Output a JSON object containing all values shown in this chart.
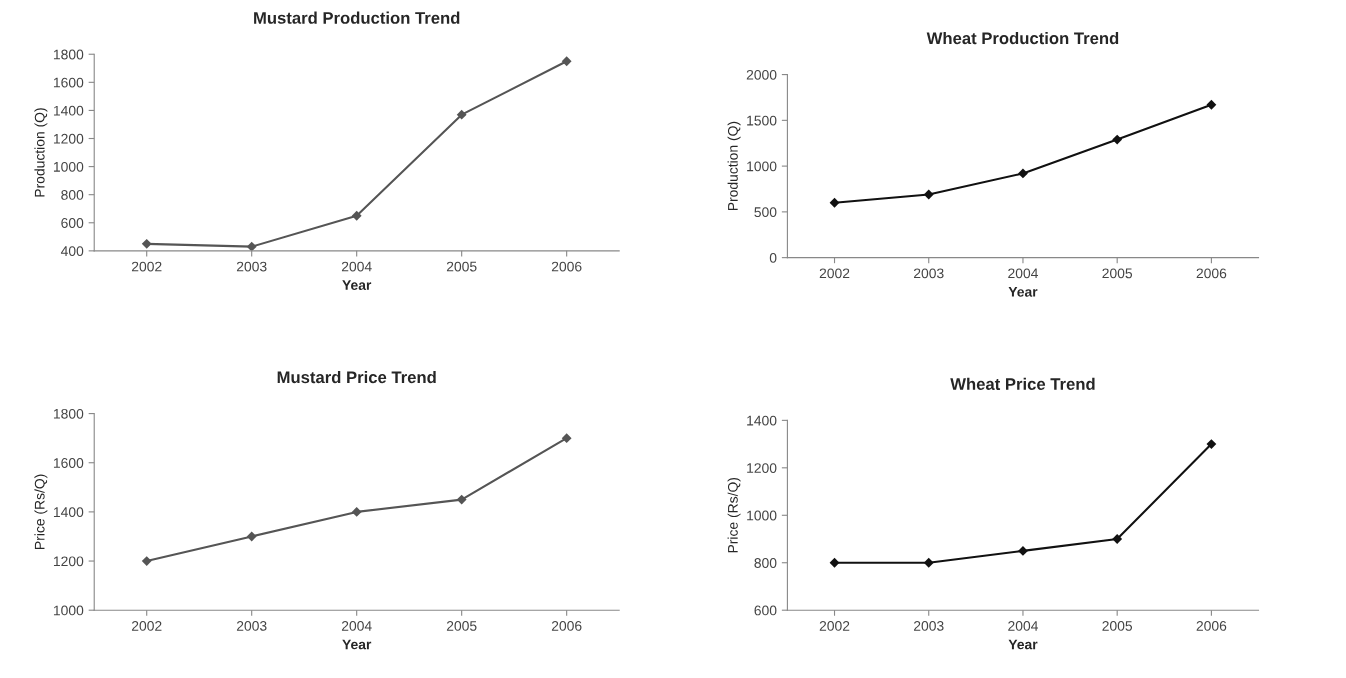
{
  "chart_data": [
    {
      "type": "line",
      "title": "Mustard Production Trend",
      "xlabel": "Year",
      "ylabel": "Production (Q)",
      "categories": [
        "2002",
        "2003",
        "2004",
        "2005",
        "2006"
      ],
      "series": [
        {
          "color": "#555555",
          "values": [
            450,
            430,
            650,
            1370,
            1750
          ]
        }
      ],
      "ylim": [
        400,
        1800
      ],
      "yticks": [
        400,
        600,
        800,
        1000,
        1200,
        1400,
        1600,
        1800
      ],
      "marker": "diamond",
      "grid": false,
      "legend": false
    },
    {
      "type": "line",
      "title": "Wheat Production Trend",
      "xlabel": "Year",
      "ylabel": "Production (Q)",
      "categories": [
        "2002",
        "2003",
        "2004",
        "2005",
        "2006"
      ],
      "series": [
        {
          "color": "#111111",
          "values": [
            600,
            690,
            920,
            1290,
            1670
          ]
        }
      ],
      "ylim": [
        0,
        2000
      ],
      "yticks": [
        0,
        500,
        1000,
        1500,
        2000
      ],
      "marker": "diamond",
      "grid": false,
      "legend": false
    },
    {
      "type": "line",
      "title": "Mustard Price Trend",
      "xlabel": "Year",
      "ylabel": "Price (Rs/Q)",
      "categories": [
        "2002",
        "2003",
        "2004",
        "2005",
        "2006"
      ],
      "series": [
        {
          "color": "#555555",
          "values": [
            1200,
            1300,
            1400,
            1450,
            1700
          ]
        }
      ],
      "ylim": [
        1000,
        1800
      ],
      "yticks": [
        1000,
        1200,
        1400,
        1600,
        1800
      ],
      "marker": "diamond",
      "grid": false,
      "legend": false
    },
    {
      "type": "line",
      "title": "Wheat Price Trend",
      "xlabel": "Year",
      "ylabel": "Price (Rs/Q)",
      "categories": [
        "2002",
        "2003",
        "2004",
        "2005",
        "2006"
      ],
      "series": [
        {
          "color": "#111111",
          "values": [
            800,
            800,
            850,
            900,
            1300
          ]
        }
      ],
      "ylim": [
        600,
        1400
      ],
      "yticks": [
        600,
        800,
        1000,
        1200,
        1400
      ],
      "marker": "diamond",
      "grid": false,
      "legend": false
    }
  ]
}
